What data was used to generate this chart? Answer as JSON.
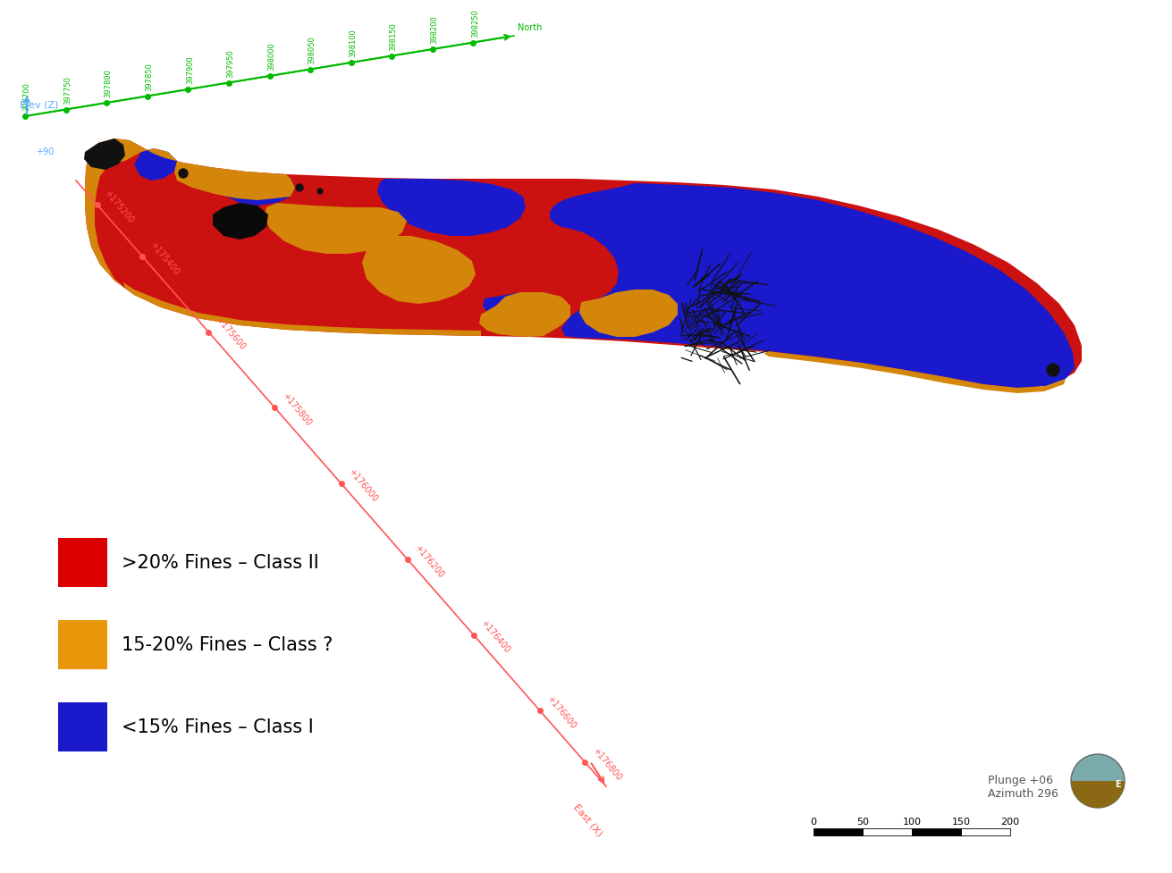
{
  "background_color": "#ffffff",
  "figsize": [
    12.91,
    9.45
  ],
  "dpi": 100,
  "legend_items": [
    {
      "color": "#dd0000",
      "label": ">20% Fines – Class II"
    },
    {
      "color": "#e8960a",
      "label": "15-20% Fines – Class ?"
    },
    {
      "color": "#1a1acc",
      "label": "<15% Fines – Class I"
    }
  ],
  "legend_fontsize": 15,
  "axis_color_green": "#00bb00",
  "axis_color_red": "#ff5555",
  "axis_color_blue": "#55aaff",
  "elev_label": "Elev (Z)",
  "green_axis_labels": [
    "397700",
    "397750",
    "397800",
    "397850",
    "397900",
    "397950",
    "398000",
    "398050",
    "398100",
    "398150",
    "398200",
    "398250",
    "North"
  ],
  "red_axis_labels": [
    "+175200",
    "+175400",
    "+175600",
    "+175800",
    "+176000",
    "+176200",
    "+176400",
    "+176600",
    "+176800"
  ],
  "compass_text": "Plunge +06\nAzimuth 296",
  "scale_bar_values": [
    0,
    50,
    100,
    150,
    200
  ],
  "main_body_color": "#cc1111",
  "orange_color": "#d4860a",
  "blue_color": "#1a1acc",
  "black_color": "#111111"
}
